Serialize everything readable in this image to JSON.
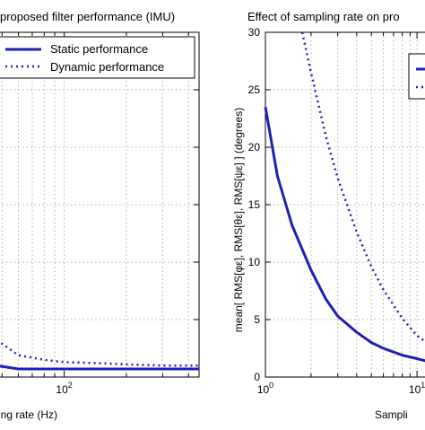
{
  "chart_data": [
    {
      "type": "line",
      "title": "proposed filter performance (IMU)",
      "xlabel": "ing rate (Hz)",
      "ylabel": "",
      "xscale": "log",
      "xlim": [
        40,
        450
      ],
      "ylim": [
        0,
        30
      ],
      "xticks": [
        {
          "value": 100,
          "base": "10",
          "exp": "2"
        }
      ],
      "grid": true,
      "legend_position": "top-left",
      "series": [
        {
          "name": "Static performance",
          "style": "solid",
          "color": "#1f1fb4",
          "x": [
            40,
            60,
            100,
            200,
            300,
            450
          ],
          "y": [
            1.2,
            0.7,
            0.7,
            0.7,
            0.7,
            0.7
          ]
        },
        {
          "name": "Dynamic performance",
          "style": "dotted",
          "color": "#1f1fb4",
          "x": [
            40,
            50,
            60,
            80,
            100,
            150,
            200,
            300,
            450
          ],
          "y": [
            3.8,
            2.9,
            1.9,
            1.5,
            1.3,
            1.2,
            1.1,
            1.0,
            1.0
          ]
        }
      ]
    },
    {
      "type": "line",
      "title": "Effect of sampling rate on pro",
      "xlabel": "Sampli",
      "ylabel": "mean[ RMS[φε], RMS[θε], RMS[ψε] ] (degrees)",
      "xscale": "log",
      "xlim": [
        1,
        20
      ],
      "ylim": [
        0,
        30
      ],
      "yticks": [
        0,
        5,
        10,
        15,
        20,
        25,
        30
      ],
      "xticks": [
        {
          "value": 1,
          "base": "10",
          "exp": "0"
        },
        {
          "value": 10,
          "base": "10",
          "exp": "1"
        }
      ],
      "grid": true,
      "legend_position": "top-right",
      "series": [
        {
          "name": "",
          "style": "solid",
          "color": "#1f1fb4",
          "x": [
            1,
            1.2,
            1.5,
            2,
            2.5,
            3,
            4,
            5,
            6,
            8,
            10,
            14,
            20
          ],
          "y": [
            23.5,
            17.5,
            13.2,
            9.3,
            6.8,
            5.3,
            3.9,
            3.0,
            2.5,
            1.9,
            1.6,
            1.1,
            0.8
          ]
        },
        {
          "name": "",
          "style": "dotted",
          "color": "#1f1fb4",
          "x": [
            1.75,
            2,
            2.5,
            3,
            4,
            5,
            6,
            8,
            10,
            14,
            20
          ],
          "y": [
            30,
            26.5,
            21,
            17.3,
            12.6,
            9.6,
            7.6,
            5.1,
            3.6,
            2.2,
            1.2
          ]
        }
      ]
    }
  ]
}
